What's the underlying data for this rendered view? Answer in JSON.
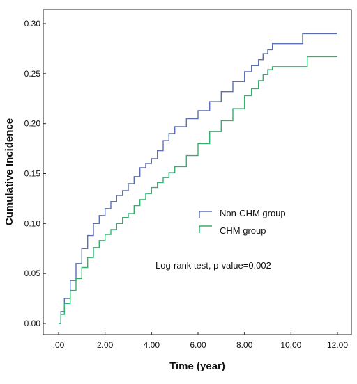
{
  "chart_data": {
    "type": "line",
    "step": true,
    "title": "",
    "xlabel": "Time (year)",
    "ylabel": "Cumulative Incidence",
    "xlim": [
      0,
      12
    ],
    "ylim": [
      0,
      0.3
    ],
    "x_ticks": [
      ".00",
      "2.00",
      "4.00",
      "6.00",
      "8.00",
      "10.00",
      "12.00"
    ],
    "y_ticks": [
      "0.00",
      "0.05",
      "0.10",
      "0.15",
      "0.20",
      "0.25",
      "0.30"
    ],
    "grid": false,
    "legend_position": "center-right",
    "series": [
      {
        "name": "Non-CHM group",
        "color": "#5b6fb5",
        "x": [
          0,
          0.1,
          0.25,
          0.5,
          0.75,
          1.0,
          1.25,
          1.5,
          1.75,
          2.0,
          2.25,
          2.5,
          2.75,
          3.0,
          3.25,
          3.5,
          3.75,
          4.0,
          4.25,
          4.5,
          4.75,
          5.0,
          5.5,
          6.0,
          6.5,
          7.0,
          7.5,
          8.0,
          8.3,
          8.6,
          8.8,
          9.0,
          9.2,
          10.5,
          12.0
        ],
        "y": [
          0,
          0.012,
          0.025,
          0.043,
          0.06,
          0.075,
          0.088,
          0.1,
          0.108,
          0.115,
          0.122,
          0.128,
          0.133,
          0.14,
          0.147,
          0.156,
          0.16,
          0.165,
          0.173,
          0.183,
          0.19,
          0.197,
          0.205,
          0.213,
          0.222,
          0.232,
          0.242,
          0.252,
          0.258,
          0.264,
          0.27,
          0.274,
          0.28,
          0.29,
          0.29
        ]
      },
      {
        "name": "CHM group",
        "color": "#2fb26b",
        "x": [
          0,
          0.1,
          0.25,
          0.5,
          0.75,
          1.0,
          1.25,
          1.5,
          1.75,
          2.0,
          2.25,
          2.5,
          2.75,
          3.0,
          3.25,
          3.5,
          3.75,
          4.0,
          4.25,
          4.5,
          4.75,
          5.0,
          5.5,
          6.0,
          6.5,
          7.0,
          7.5,
          8.0,
          8.3,
          8.6,
          8.8,
          9.0,
          9.2,
          10.7,
          12.0
        ],
        "y": [
          0,
          0.009,
          0.02,
          0.033,
          0.045,
          0.056,
          0.066,
          0.076,
          0.083,
          0.089,
          0.094,
          0.1,
          0.106,
          0.11,
          0.118,
          0.124,
          0.13,
          0.136,
          0.141,
          0.146,
          0.151,
          0.157,
          0.168,
          0.18,
          0.192,
          0.203,
          0.215,
          0.228,
          0.235,
          0.243,
          0.249,
          0.254,
          0.257,
          0.267,
          0.267
        ]
      }
    ],
    "annotations": [
      "Log-rank test, p-value=0.002"
    ]
  }
}
